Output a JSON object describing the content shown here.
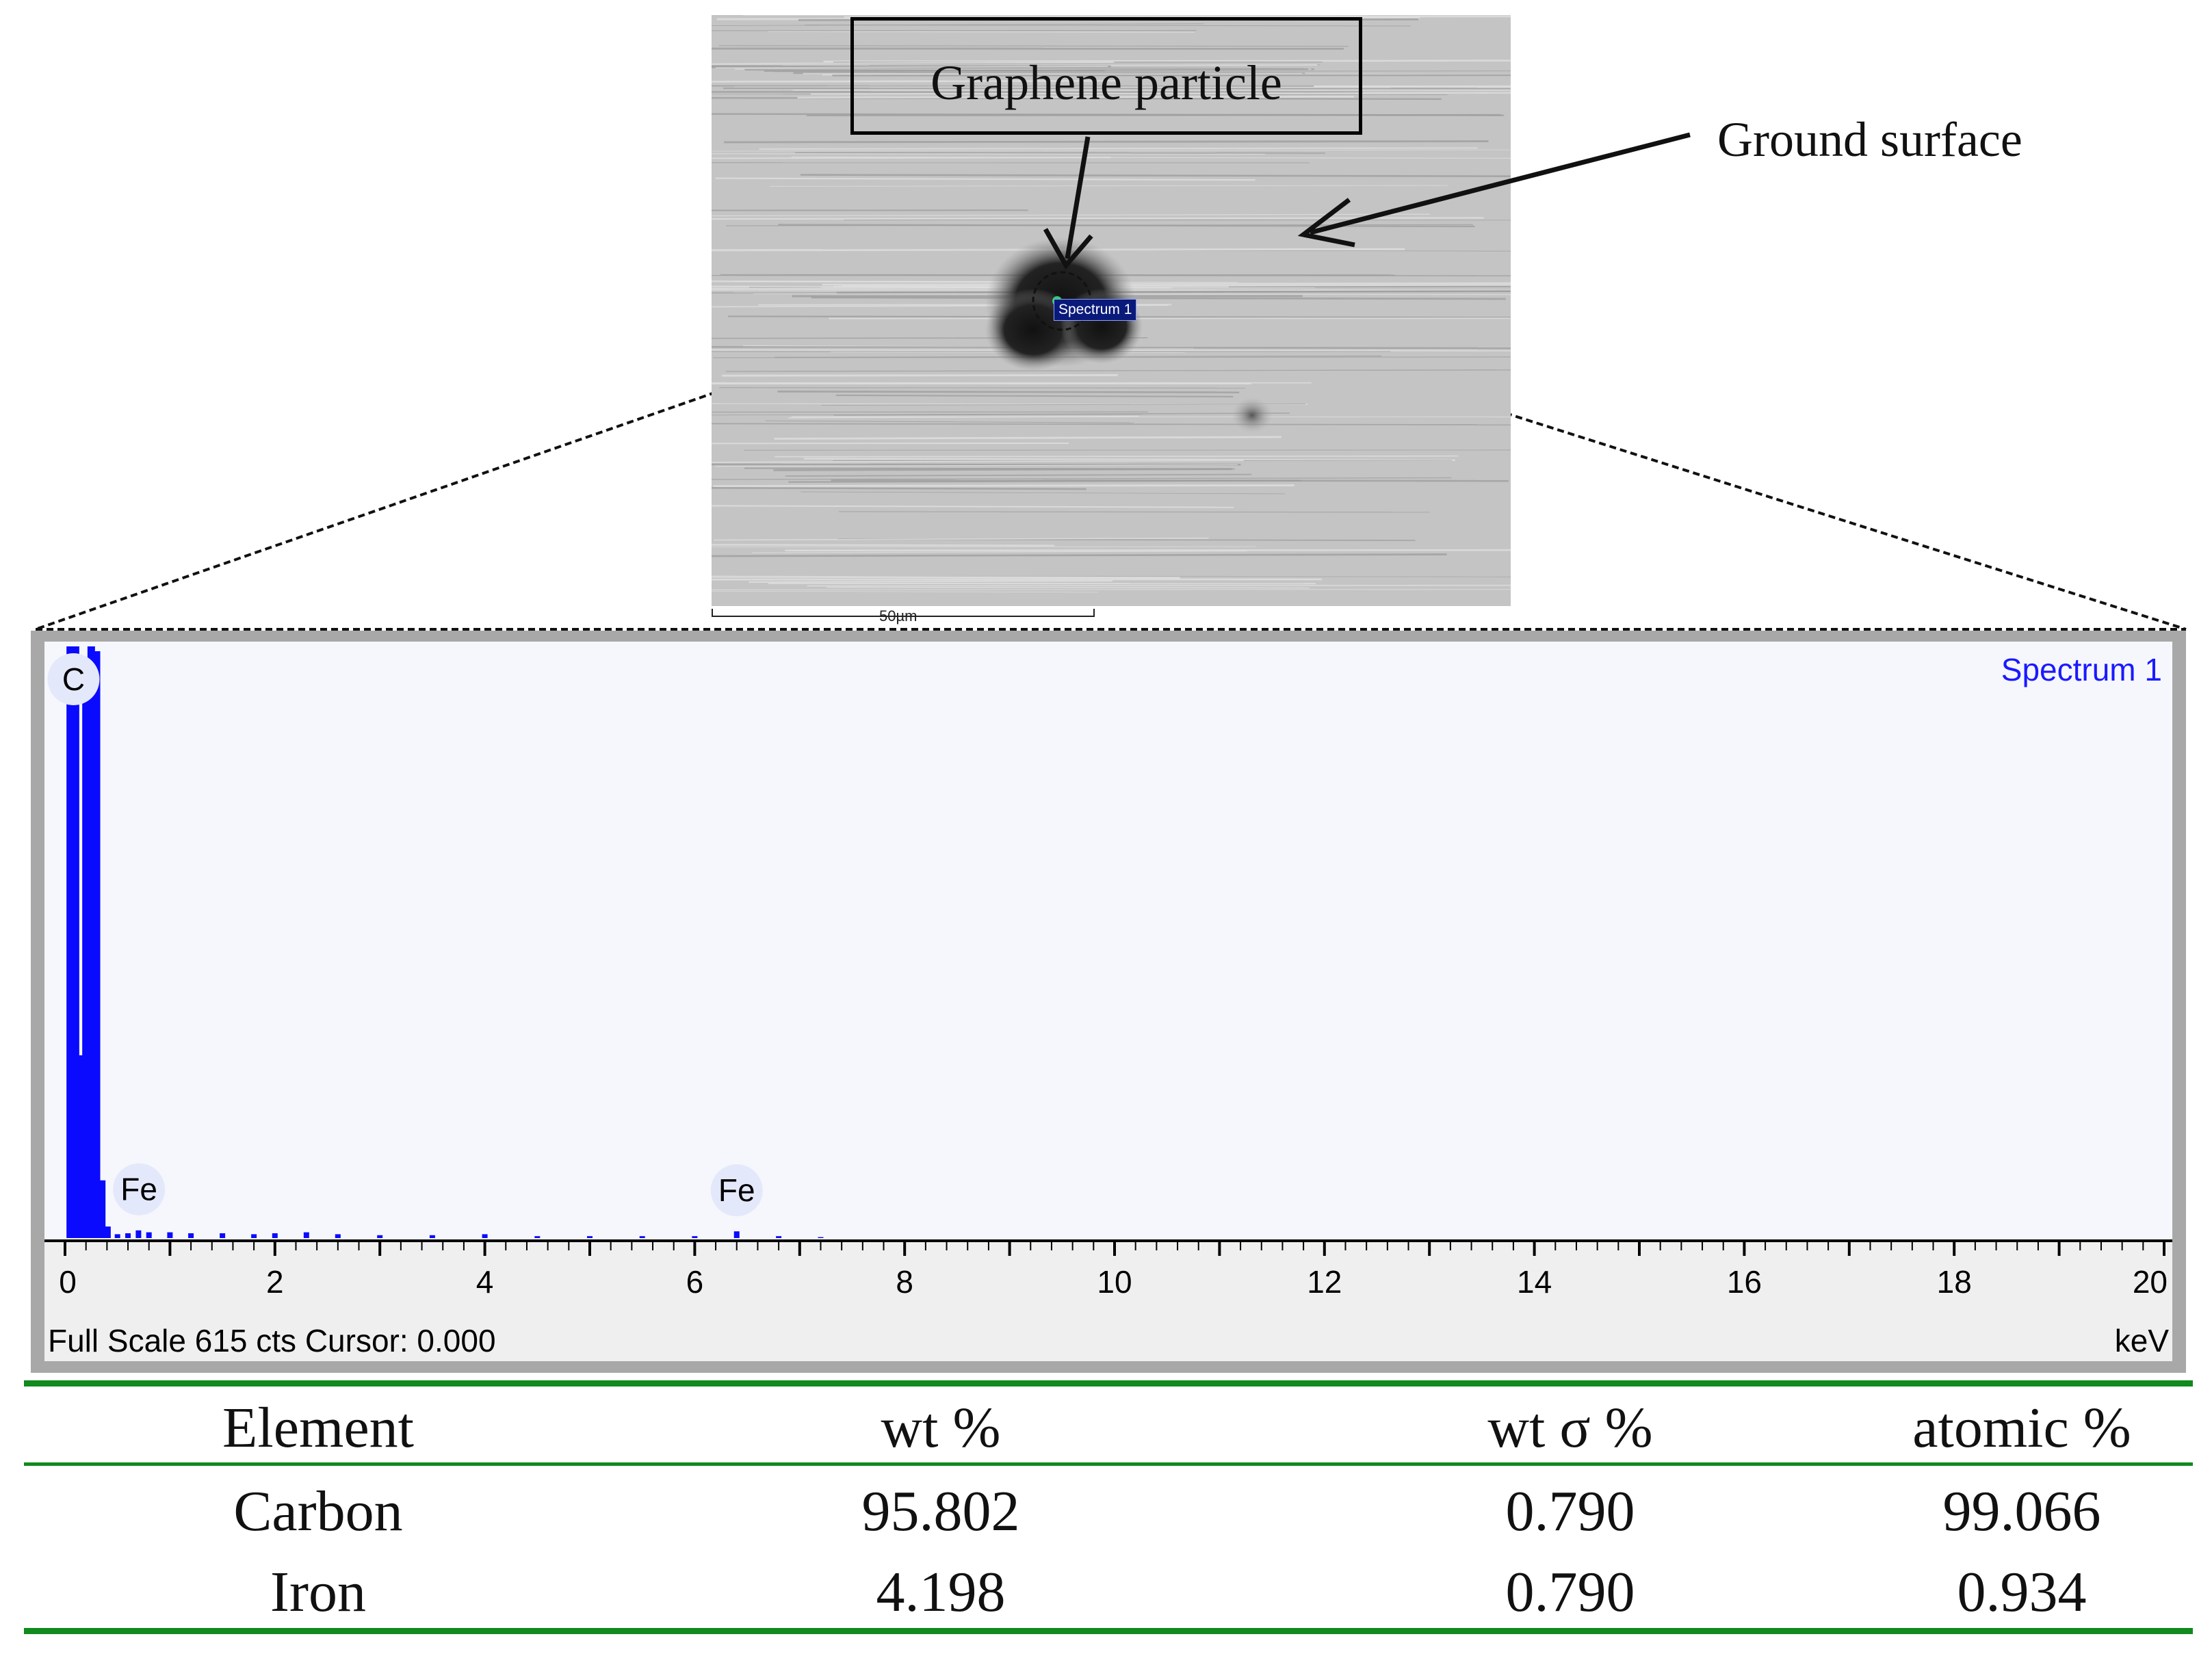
{
  "micrograph": {
    "particle_label": "Graphene particle",
    "surface_label": "Ground surface",
    "spectrum_tag": "Spectrum 1",
    "scale_bar_label": "50µm"
  },
  "chart_data": {
    "type": "bar",
    "title": "Spectrum 1",
    "xlabel": "keV",
    "xlim": [
      0,
      20
    ],
    "x_ticks": [
      "0",
      "2",
      "4",
      "6",
      "8",
      "10",
      "12",
      "14",
      "16",
      "18",
      "20"
    ],
    "footer": "Full Scale 615 cts Cursor: 0.000",
    "full_scale_cts": 615,
    "peaks": [
      {
        "label": "C",
        "energy_kev": 0.277,
        "counts": 615
      },
      {
        "label": "Fe",
        "energy_kev": 0.705,
        "counts": 8
      },
      {
        "label": "Fe",
        "energy_kev": 6.4,
        "counts": 7
      }
    ],
    "series": [
      {
        "x": [
          0.05,
          0.1,
          0.15,
          0.2,
          0.25,
          0.3,
          0.35,
          0.4,
          0.5,
          0.6,
          0.7,
          0.8,
          1.0,
          1.2,
          1.5,
          1.8,
          2.0,
          2.3,
          2.6,
          3.0,
          3.5,
          4.0,
          4.5,
          5.0,
          5.5,
          6.0,
          6.4,
          6.8,
          7.2
        ],
        "y": [
          615,
          615,
          190,
          600,
          615,
          610,
          60,
          12,
          4,
          5,
          8,
          6,
          6,
          5,
          5,
          4,
          5,
          6,
          4,
          3,
          3,
          4,
          2,
          2,
          2,
          2,
          7,
          2,
          1
        ]
      }
    ]
  },
  "table": {
    "headers": [
      "Element",
      "wt %",
      "wt σ %",
      "atomic %"
    ],
    "rows": [
      [
        "Carbon",
        "95.802",
        "0.790",
        "99.066"
      ],
      [
        "Iron",
        "4.198",
        "0.790",
        "0.934"
      ]
    ]
  }
}
